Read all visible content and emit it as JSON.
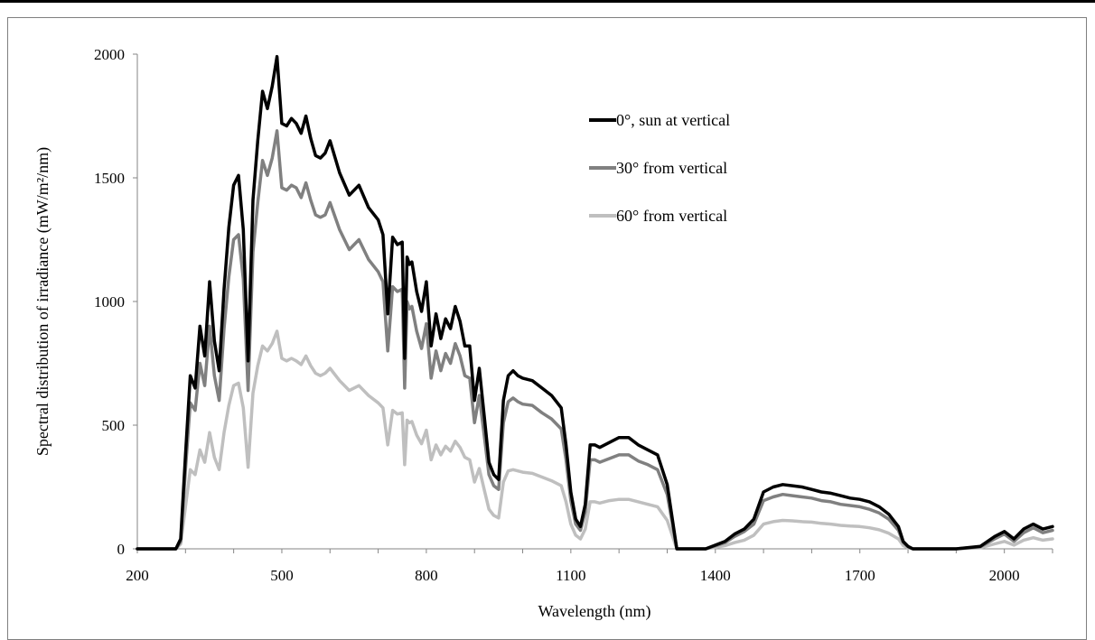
{
  "chart_data": {
    "type": "line",
    "xlabel": "Wavelength (nm)",
    "ylabel": "Spectral distribution of irradiance (mW/m²/nm)",
    "xlim": [
      200,
      2100
    ],
    "ylim": [
      0,
      2000
    ],
    "x_ticks": [
      200,
      500,
      800,
      1100,
      1400,
      1700,
      2000
    ],
    "y_ticks": [
      0,
      500,
      1000,
      1500,
      2000
    ],
    "grid": false,
    "legend_placement": "top-right",
    "x": [
      200,
      280,
      290,
      300,
      310,
      320,
      330,
      340,
      350,
      360,
      370,
      380,
      390,
      400,
      410,
      420,
      430,
      440,
      450,
      460,
      470,
      480,
      490,
      500,
      510,
      520,
      530,
      540,
      550,
      560,
      570,
      580,
      590,
      600,
      620,
      640,
      660,
      680,
      700,
      710,
      720,
      730,
      740,
      750,
      755,
      760,
      765,
      770,
      780,
      790,
      800,
      810,
      820,
      830,
      840,
      850,
      860,
      870,
      880,
      890,
      900,
      910,
      920,
      930,
      940,
      950,
      960,
      970,
      980,
      990,
      1000,
      1020,
      1040,
      1060,
      1080,
      1090,
      1100,
      1110,
      1120,
      1130,
      1140,
      1150,
      1160,
      1180,
      1200,
      1220,
      1240,
      1260,
      1280,
      1300,
      1320,
      1340,
      1350,
      1360,
      1380,
      1400,
      1420,
      1440,
      1460,
      1480,
      1500,
      1520,
      1540,
      1560,
      1580,
      1600,
      1620,
      1640,
      1660,
      1680,
      1700,
      1720,
      1740,
      1760,
      1780,
      1790,
      1800,
      1810,
      1820,
      1850,
      1900,
      1950,
      1980,
      2000,
      2020,
      2040,
      2060,
      2080,
      2100
    ],
    "series": [
      {
        "name": "0°, sun at vertical",
        "color": "#000000",
        "values": [
          0,
          0,
          40,
          380,
          700,
          650,
          900,
          780,
          1080,
          840,
          720,
          1050,
          1300,
          1470,
          1510,
          1290,
          760,
          1410,
          1650,
          1850,
          1780,
          1870,
          1990,
          1720,
          1710,
          1740,
          1720,
          1680,
          1750,
          1660,
          1590,
          1580,
          1600,
          1650,
          1520,
          1430,
          1470,
          1380,
          1330,
          1270,
          950,
          1260,
          1230,
          1240,
          770,
          1180,
          1150,
          1160,
          1040,
          960,
          1080,
          820,
          950,
          850,
          930,
          890,
          980,
          920,
          820,
          820,
          600,
          730,
          540,
          350,
          300,
          280,
          600,
          700,
          720,
          700,
          690,
          680,
          650,
          620,
          570,
          420,
          230,
          120,
          90,
          180,
          420,
          420,
          410,
          430,
          450,
          450,
          420,
          400,
          380,
          260,
          0,
          0,
          0,
          0,
          0,
          15,
          30,
          60,
          80,
          120,
          230,
          250,
          260,
          255,
          250,
          240,
          230,
          225,
          215,
          205,
          200,
          190,
          170,
          140,
          90,
          30,
          10,
          0,
          0,
          0,
          0,
          10,
          50,
          70,
          40,
          80,
          100,
          80,
          90
        ]
      },
      {
        "name": "30° from vertical",
        "color": "#808080",
        "values": [
          0,
          0,
          30,
          320,
          590,
          560,
          750,
          660,
          900,
          700,
          600,
          890,
          1100,
          1250,
          1270,
          1090,
          640,
          1200,
          1400,
          1570,
          1510,
          1580,
          1690,
          1460,
          1450,
          1470,
          1460,
          1420,
          1480,
          1410,
          1350,
          1340,
          1350,
          1400,
          1290,
          1210,
          1250,
          1170,
          1120,
          1080,
          800,
          1060,
          1040,
          1050,
          650,
          1000,
          970,
          980,
          880,
          810,
          910,
          690,
          800,
          720,
          790,
          750,
          830,
          780,
          700,
          690,
          510,
          620,
          460,
          300,
          255,
          240,
          510,
          595,
          610,
          595,
          585,
          580,
          550,
          525,
          485,
          360,
          195,
          100,
          75,
          150,
          360,
          360,
          350,
          365,
          380,
          380,
          355,
          340,
          320,
          220,
          0,
          0,
          0,
          0,
          0,
          12,
          25,
          50,
          70,
          100,
          195,
          210,
          220,
          215,
          210,
          205,
          195,
          190,
          180,
          175,
          170,
          160,
          145,
          120,
          75,
          25,
          8,
          0,
          0,
          0,
          0,
          8,
          40,
          60,
          30,
          65,
          85,
          65,
          75
        ]
      },
      {
        "name": "60° from vertical",
        "color": "#bfbfbf",
        "values": [
          0,
          0,
          20,
          170,
          320,
          300,
          400,
          350,
          470,
          370,
          320,
          470,
          580,
          660,
          670,
          570,
          330,
          630,
          740,
          820,
          800,
          830,
          880,
          770,
          760,
          770,
          760,
          745,
          780,
          740,
          710,
          700,
          710,
          730,
          680,
          640,
          660,
          620,
          590,
          570,
          420,
          560,
          545,
          550,
          340,
          520,
          510,
          515,
          460,
          425,
          480,
          360,
          420,
          380,
          415,
          395,
          435,
          410,
          370,
          360,
          270,
          325,
          240,
          160,
          135,
          125,
          270,
          315,
          320,
          315,
          310,
          305,
          290,
          275,
          255,
          190,
          100,
          55,
          40,
          80,
          190,
          190,
          185,
          195,
          200,
          200,
          190,
          180,
          170,
          115,
          0,
          0,
          0,
          0,
          0,
          6,
          13,
          25,
          35,
          55,
          100,
          110,
          115,
          113,
          110,
          108,
          103,
          100,
          95,
          92,
          90,
          85,
          77,
          63,
          40,
          13,
          4,
          0,
          0,
          0,
          0,
          4,
          20,
          30,
          15,
          35,
          45,
          35,
          40
        ]
      }
    ]
  }
}
